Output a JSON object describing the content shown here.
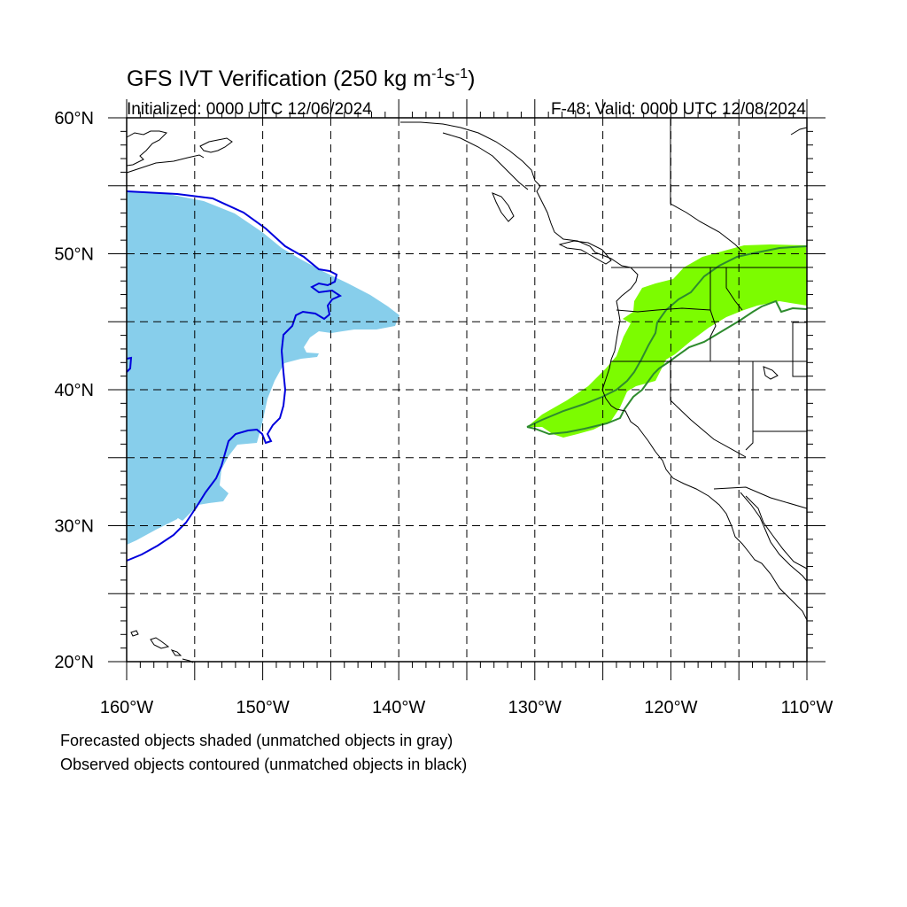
{
  "title": {
    "main": "GFS IVT Verification",
    "units_prefix": "(250 kg m",
    "units_exp1": "-1",
    "units_mid": "s",
    "units_exp2": "-1",
    "units_suffix": ")"
  },
  "initialized": "Initialized: 0000 UTC 12/06/2024",
  "valid": "F-48: Valid: 0000 UTC 12/08/2024",
  "lat_labels": [
    {
      "lat": 60,
      "text": "60°N"
    },
    {
      "lat": 50,
      "text": "50°N"
    },
    {
      "lat": 40,
      "text": "40°N"
    },
    {
      "lat": 30,
      "text": "30°N"
    },
    {
      "lat": 20,
      "text": "20°N"
    }
  ],
  "lon_labels": [
    {
      "lon": -160,
      "text": "160°W"
    },
    {
      "lon": -150,
      "text": "150°W"
    },
    {
      "lon": -140,
      "text": "140°W"
    },
    {
      "lon": -130,
      "text": "130°W"
    },
    {
      "lon": -120,
      "text": "120°W"
    },
    {
      "lon": -110,
      "text": "110°W"
    }
  ],
  "map_extent": {
    "lon": [
      -160,
      -110
    ],
    "lat": [
      20,
      60
    ]
  },
  "gridlines_lon": [
    -155,
    -150,
    -145,
    -140,
    -135,
    -130,
    -125,
    -120,
    -115
  ],
  "gridlines_lat": [
    25,
    30,
    35,
    40,
    45,
    50,
    55
  ],
  "colors": {
    "forecast_object_1": "#87ceeb",
    "observed_object_1": "#0000dd",
    "forecast_object_2": "#7cfc00",
    "observed_object_2": "#2e8b2e"
  },
  "captions": [
    "Forecasted objects shaded (unmatched objects in gray)",
    "Observed objects contoured (unmatched objects in black)"
  ]
}
